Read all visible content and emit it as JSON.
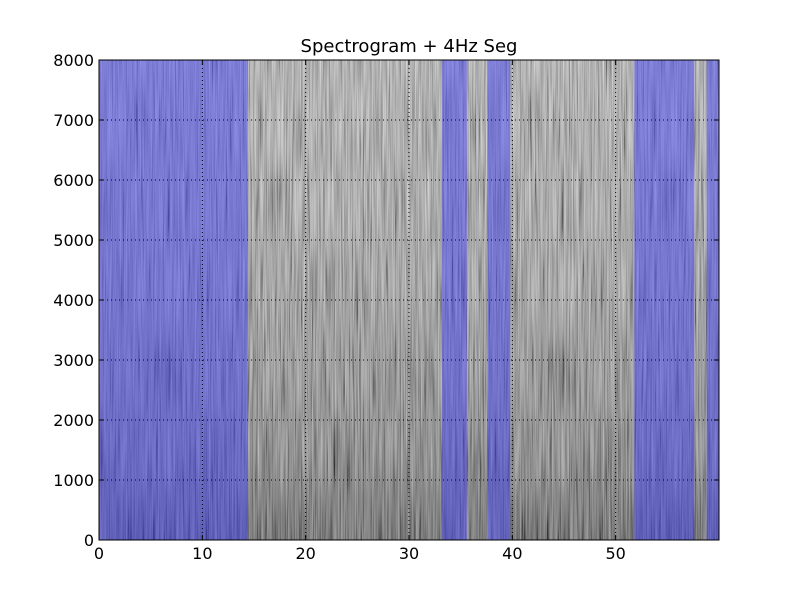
{
  "chart_data": {
    "type": "heatmap",
    "title": "Spectrogram + 4Hz Seg",
    "xlabel": "",
    "ylabel": "",
    "xlim": [
      0,
      60
    ],
    "ylim": [
      0,
      8000
    ],
    "x_ticks": [
      0,
      10,
      20,
      30,
      40,
      50
    ],
    "y_ticks": [
      0,
      1000,
      2000,
      3000,
      4000,
      5000,
      6000,
      7000,
      8000
    ],
    "x_tick_labels": [
      "0",
      "10",
      "20",
      "30",
      "40",
      "50"
    ],
    "y_tick_labels": [
      "0",
      "1000",
      "2000",
      "3000",
      "4000",
      "5000",
      "6000",
      "7000",
      "8000"
    ],
    "grid": true,
    "legend": "none",
    "colormap": "gray",
    "highlight_color": "#3c3cff",
    "highlight_segments": [
      {
        "x0": 0.0,
        "x1": 14.4
      },
      {
        "x0": 33.2,
        "x1": 35.6
      },
      {
        "x0": 37.6,
        "x1": 39.8
      },
      {
        "x0": 51.8,
        "x1": 57.6
      },
      {
        "x0": 58.8,
        "x1": 60.0
      }
    ]
  }
}
